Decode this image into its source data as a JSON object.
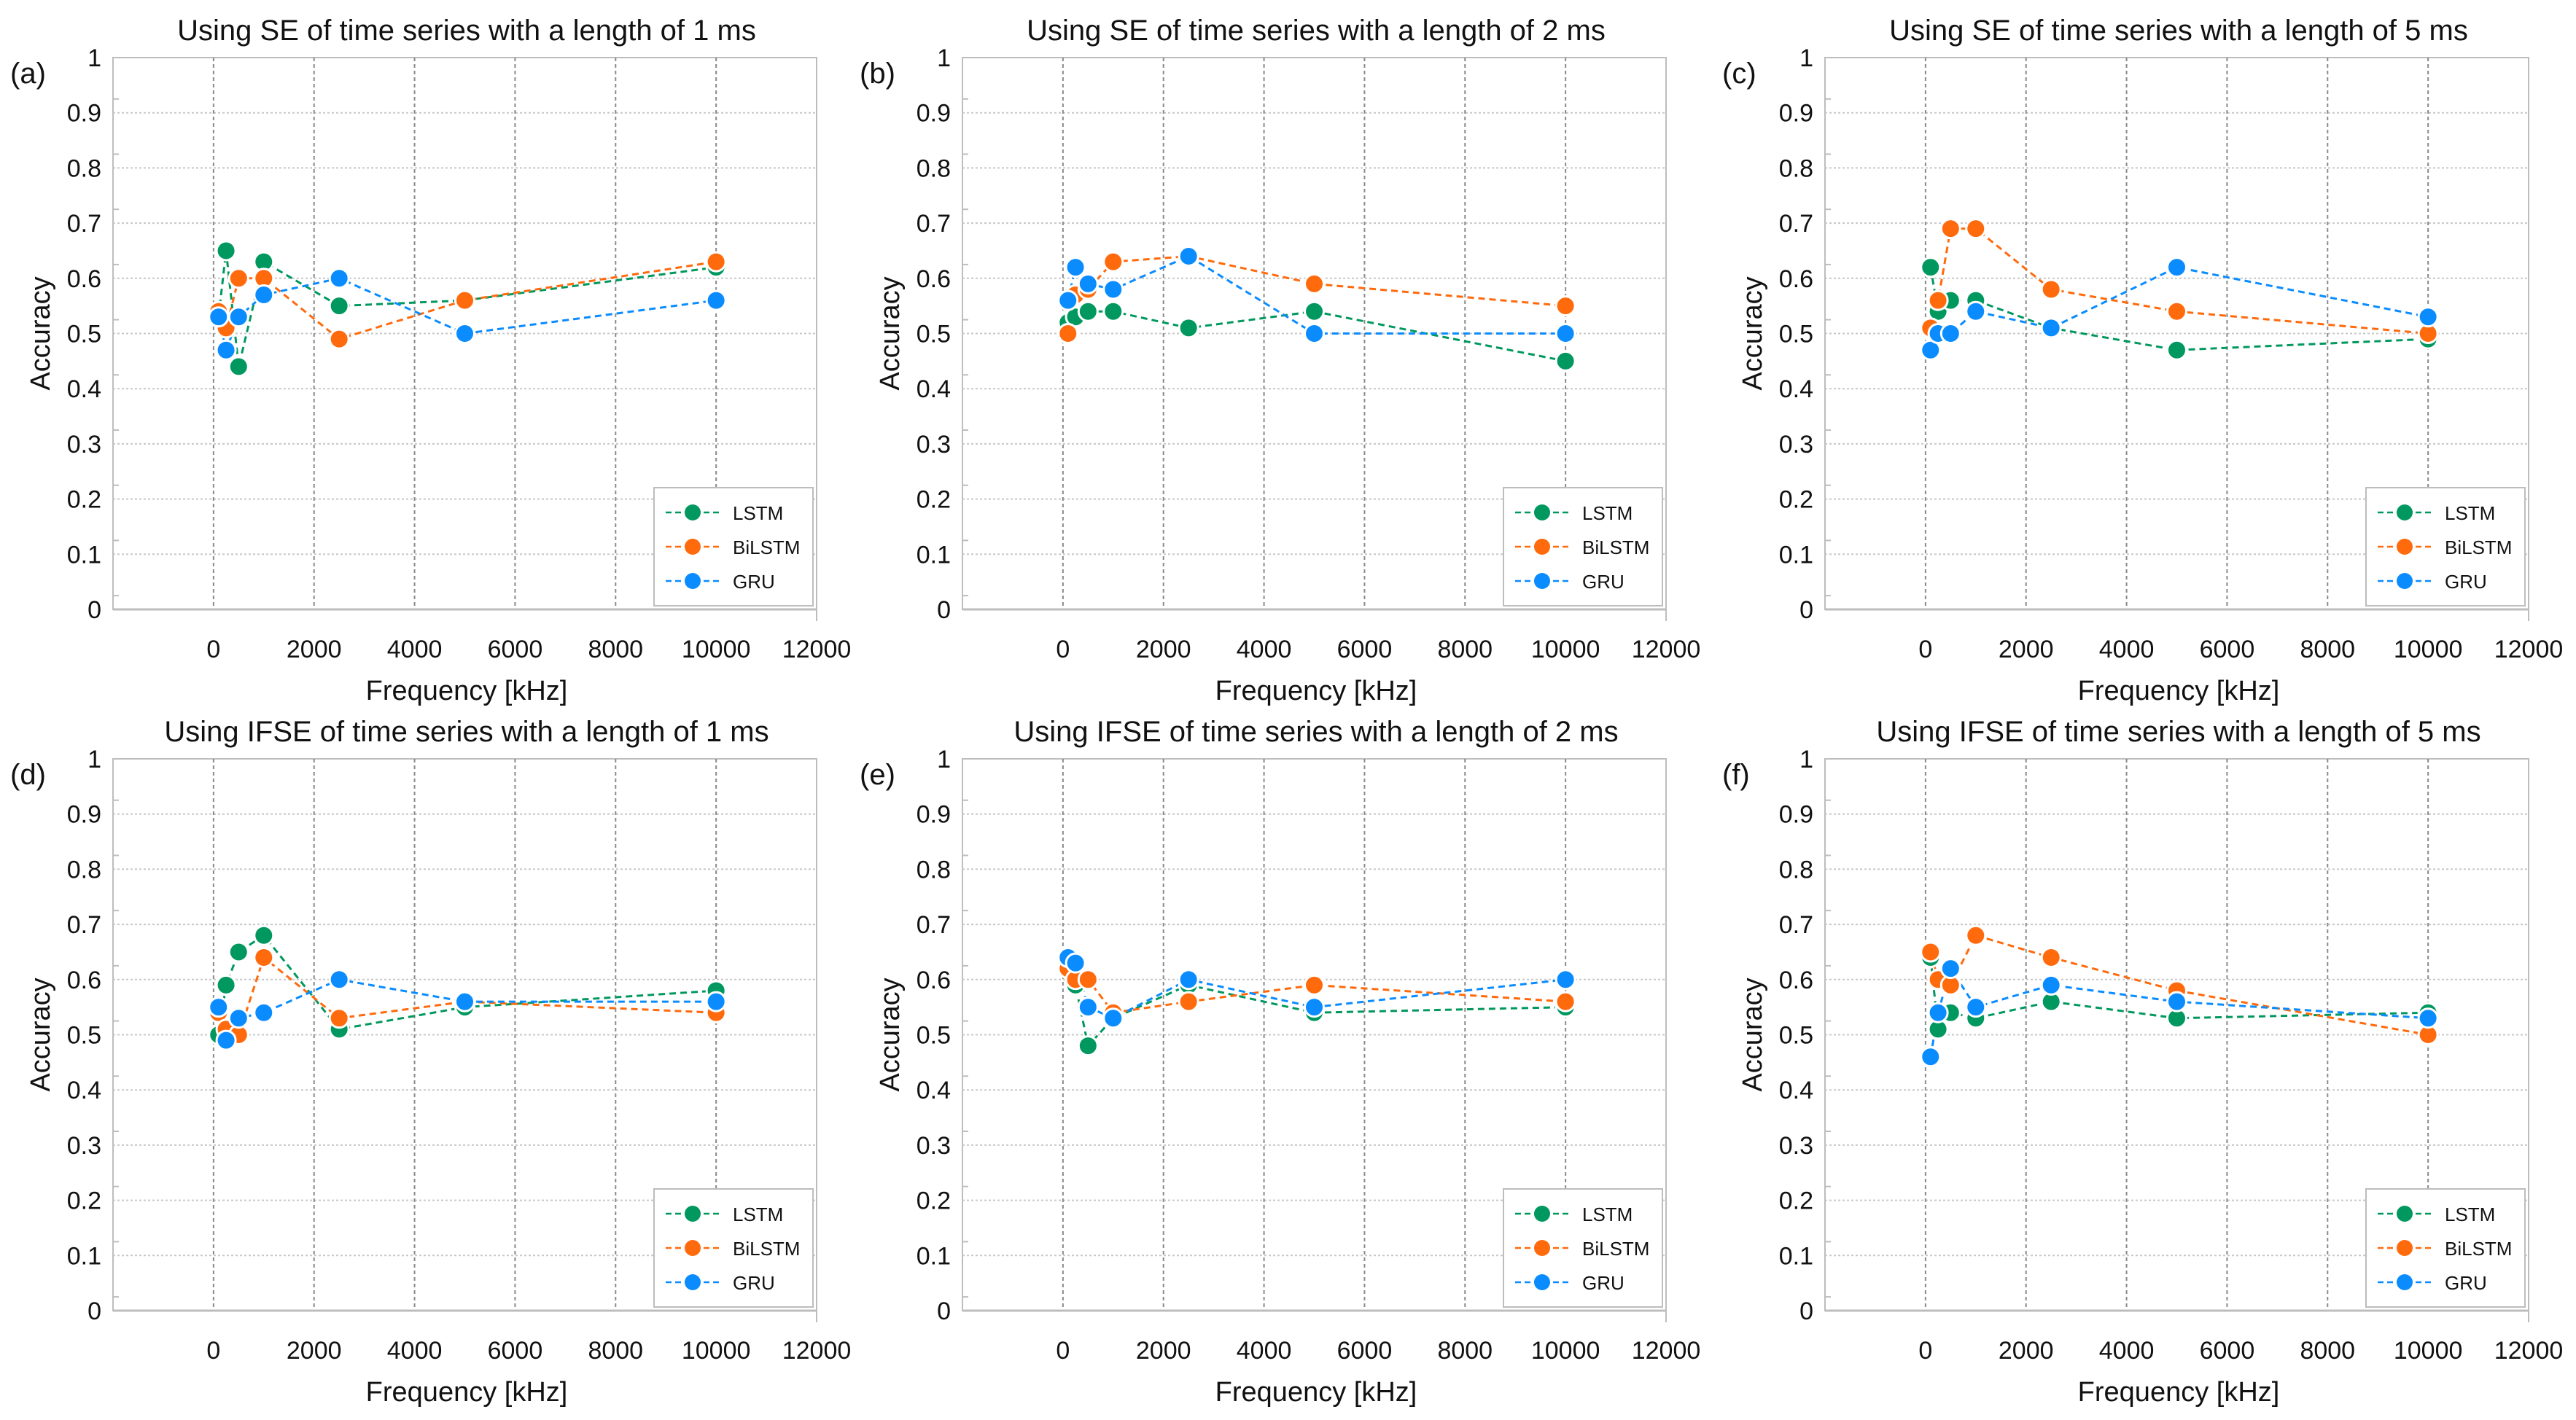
{
  "colors": {
    "LSTM": "#00985F",
    "BiLSTM": "#FF6A0D",
    "GRU": "#0A8CFF"
  },
  "chart_data": [
    {
      "type": "line",
      "panel_label": "(a)",
      "title": "Using SE of time series with a length of 1 ms",
      "xlabel": "Frequency [kHz]",
      "ylabel": "Accuracy",
      "xlim": [
        -2000,
        12000
      ],
      "ylim": [
        0,
        1
      ],
      "grid": true,
      "legend": "bottom-right",
      "x": [
        100,
        250,
        500,
        1000,
        2500,
        5000,
        10000
      ],
      "series": [
        {
          "name": "LSTM",
          "values": [
            0.53,
            0.65,
            0.44,
            0.63,
            0.55,
            0.56,
            0.62
          ]
        },
        {
          "name": "BiLSTM",
          "values": [
            0.54,
            0.51,
            0.6,
            0.6,
            0.49,
            0.56,
            0.63
          ]
        },
        {
          "name": "GRU",
          "values": [
            0.53,
            0.47,
            0.53,
            0.57,
            0.6,
            0.5,
            0.56
          ]
        }
      ]
    },
    {
      "type": "line",
      "panel_label": "(b)",
      "title": "Using SE of time series with a length of 2 ms",
      "xlabel": "Frequency [kHz]",
      "ylabel": "Accuracy",
      "xlim": [
        -2000,
        12000
      ],
      "ylim": [
        0,
        1
      ],
      "grid": true,
      "legend": "bottom-right",
      "x": [
        100,
        250,
        500,
        1000,
        2500,
        5000,
        10000
      ],
      "series": [
        {
          "name": "LSTM",
          "values": [
            0.52,
            0.53,
            0.54,
            0.54,
            0.51,
            0.54,
            0.45
          ]
        },
        {
          "name": "BiLSTM",
          "values": [
            0.5,
            0.57,
            0.58,
            0.63,
            0.64,
            0.59,
            0.55
          ]
        },
        {
          "name": "GRU",
          "values": [
            0.56,
            0.62,
            0.59,
            0.58,
            0.64,
            0.5,
            0.5
          ]
        }
      ]
    },
    {
      "type": "line",
      "panel_label": "(c)",
      "title": "Using SE of time series with a length of 5 ms",
      "xlabel": "Frequency [kHz]",
      "ylabel": "Accuracy",
      "xlim": [
        -2000,
        12000
      ],
      "ylim": [
        0,
        1
      ],
      "grid": true,
      "legend": "bottom-right",
      "x": [
        100,
        250,
        500,
        1000,
        2500,
        5000,
        10000
      ],
      "series": [
        {
          "name": "LSTM",
          "values": [
            0.62,
            0.54,
            0.56,
            0.56,
            0.51,
            0.47,
            0.49
          ]
        },
        {
          "name": "BiLSTM",
          "values": [
            0.51,
            0.56,
            0.69,
            0.69,
            0.58,
            0.54,
            0.5
          ]
        },
        {
          "name": "GRU",
          "values": [
            0.47,
            0.5,
            0.5,
            0.54,
            0.51,
            0.62,
            0.53
          ]
        }
      ]
    },
    {
      "type": "line",
      "panel_label": "(d)",
      "title": "Using IFSE of time series with a length of 1 ms",
      "xlabel": "Frequency [kHz]",
      "ylabel": "Accuracy",
      "xlim": [
        -2000,
        12000
      ],
      "ylim": [
        0,
        1
      ],
      "grid": true,
      "legend": "bottom-right",
      "x": [
        100,
        250,
        500,
        1000,
        2500,
        5000,
        10000
      ],
      "series": [
        {
          "name": "LSTM",
          "values": [
            0.5,
            0.59,
            0.65,
            0.68,
            0.51,
            0.55,
            0.58
          ]
        },
        {
          "name": "BiLSTM",
          "values": [
            0.54,
            0.51,
            0.5,
            0.64,
            0.53,
            0.56,
            0.54
          ]
        },
        {
          "name": "GRU",
          "values": [
            0.55,
            0.49,
            0.53,
            0.54,
            0.6,
            0.56,
            0.56
          ]
        }
      ]
    },
    {
      "type": "line",
      "panel_label": "(e)",
      "title": "Using IFSE of time series with a length of 2 ms",
      "xlabel": "Frequency [kHz]",
      "ylabel": "Accuracy",
      "xlim": [
        -2000,
        12000
      ],
      "ylim": [
        0,
        1
      ],
      "grid": true,
      "legend": "bottom-right",
      "x": [
        100,
        250,
        500,
        1000,
        2500,
        5000,
        10000
      ],
      "series": [
        {
          "name": "LSTM",
          "values": [
            0.62,
            0.59,
            0.48,
            0.53,
            0.59,
            0.54,
            0.55
          ]
        },
        {
          "name": "BiLSTM",
          "values": [
            0.62,
            0.6,
            0.6,
            0.54,
            0.56,
            0.59,
            0.56
          ]
        },
        {
          "name": "GRU",
          "values": [
            0.64,
            0.63,
            0.55,
            0.53,
            0.6,
            0.55,
            0.6
          ]
        }
      ]
    },
    {
      "type": "line",
      "panel_label": "(f)",
      "title": "Using IFSE of time series with a length of 5 ms",
      "xlabel": "Frequency [kHz]",
      "ylabel": "Accuracy",
      "xlim": [
        -2000,
        12000
      ],
      "ylim": [
        0,
        1
      ],
      "grid": true,
      "legend": "bottom-right",
      "x": [
        100,
        250,
        500,
        1000,
        2500,
        5000,
        10000
      ],
      "series": [
        {
          "name": "LSTM",
          "values": [
            0.64,
            0.51,
            0.54,
            0.53,
            0.56,
            0.53,
            0.54
          ]
        },
        {
          "name": "BiLSTM",
          "values": [
            0.65,
            0.6,
            0.59,
            0.68,
            0.64,
            0.58,
            0.5
          ]
        },
        {
          "name": "GRU",
          "values": [
            0.46,
            0.54,
            0.62,
            0.55,
            0.59,
            0.56,
            0.53
          ]
        }
      ]
    }
  ],
  "xticks": [
    0,
    2000,
    4000,
    6000,
    8000,
    10000,
    12000
  ],
  "yticks": [
    "0",
    "0.1",
    "0.2",
    "0.3",
    "0.4",
    "0.5",
    "0.6",
    "0.7",
    "0.8",
    "0.9",
    "1"
  ]
}
